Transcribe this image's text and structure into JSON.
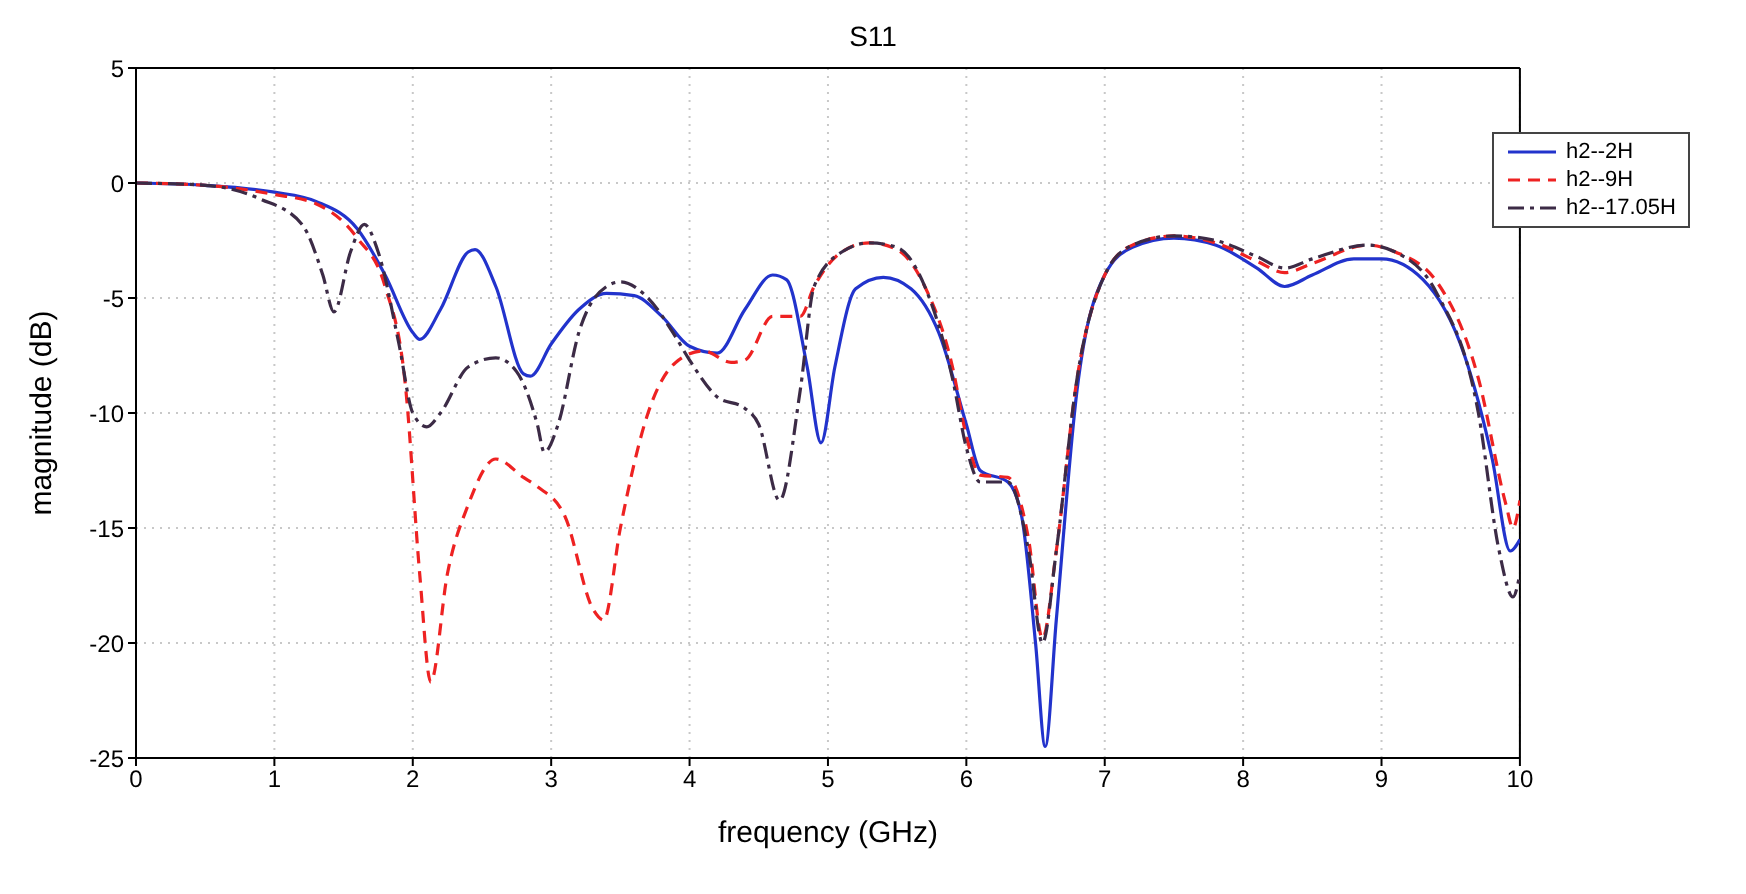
{
  "chart_data": {
    "type": "line",
    "title": "S11",
    "xlabel": "frequency (GHz)",
    "ylabel": "magnitude (dB)",
    "xlim": [
      0,
      10
    ],
    "xticks": [
      0,
      1,
      2,
      3,
      4,
      5,
      6,
      7,
      8,
      9,
      10
    ],
    "ylim": [
      -25,
      5
    ],
    "yticks": [
      -25,
      -20,
      -15,
      -10,
      -5,
      0,
      5
    ],
    "grid": true,
    "legend": "top right",
    "series": [
      {
        "name": "h2--2H",
        "color": "#2233cc",
        "line_style": "solid",
        "x": [
          0,
          0.5,
          1,
          1.3,
          1.6,
          1.8,
          2.0,
          2.05,
          2.2,
          2.4,
          2.45,
          2.6,
          2.8,
          2.85,
          3.0,
          3.2,
          3.4,
          3.6,
          3.8,
          4.0,
          4.2,
          4.4,
          4.6,
          4.7,
          4.85,
          4.95,
          5.05,
          5.2,
          5.4,
          5.6,
          5.8,
          6.0,
          6.1,
          6.3,
          6.4,
          6.5,
          6.57,
          6.65,
          6.8,
          7.0,
          7.2,
          7.5,
          7.8,
          8.1,
          8.3,
          8.5,
          8.8,
          9.0,
          9.3,
          9.6,
          9.8,
          9.93,
          10
        ],
        "values": [
          0,
          -0.1,
          -0.4,
          -0.8,
          -2,
          -4,
          -6.5,
          -6.8,
          -5.5,
          -3,
          -2.9,
          -4.5,
          -8.3,
          -8.4,
          -7,
          -5.5,
          -4.8,
          -4.9,
          -5.8,
          -7.1,
          -7.4,
          -5.5,
          -4,
          -4.2,
          -8,
          -11.3,
          -8,
          -4.6,
          -4.1,
          -4.6,
          -6.5,
          -10.5,
          -12.5,
          -13,
          -14.5,
          -20,
          -24.5,
          -19,
          -9,
          -4,
          -2.8,
          -2.4,
          -2.7,
          -3.7,
          -4.5,
          -4,
          -3.3,
          -3.3,
          -4.2,
          -7.5,
          -12,
          -16,
          -15.5
        ]
      },
      {
        "name": "h2--9H",
        "color": "#ee2222",
        "line_style": "dashed",
        "x": [
          0,
          0.5,
          1,
          1.3,
          1.6,
          1.8,
          1.95,
          2.05,
          2.13,
          2.25,
          2.4,
          2.6,
          2.8,
          2.9,
          3.1,
          3.3,
          3.38,
          3.5,
          3.7,
          3.9,
          4.1,
          4.3,
          4.4,
          4.6,
          4.8,
          4.9,
          5.1,
          5.3,
          5.5,
          5.7,
          5.9,
          6.0,
          6.1,
          6.3,
          6.45,
          6.55,
          6.65,
          6.8,
          7.0,
          7.2,
          7.5,
          7.8,
          8.1,
          8.3,
          8.5,
          8.9,
          9.1,
          9.4,
          9.7,
          9.9,
          9.95,
          10
        ],
        "values": [
          0,
          -0.1,
          -0.5,
          -0.9,
          -2.4,
          -4.5,
          -9,
          -17,
          -21.7,
          -17,
          -14,
          -12,
          -12.8,
          -13.2,
          -14.5,
          -18.5,
          -19,
          -15,
          -10,
          -7.8,
          -7.3,
          -7.8,
          -7.7,
          -5.8,
          -5.8,
          -4.5,
          -3,
          -2.6,
          -2.9,
          -4.5,
          -8,
          -11,
          -12.7,
          -12.8,
          -15.5,
          -19.8,
          -16,
          -8.5,
          -4,
          -2.7,
          -2.3,
          -2.6,
          -3.4,
          -3.9,
          -3.5,
          -2.7,
          -3,
          -4.3,
          -8.5,
          -14,
          -15,
          -13.8
        ]
      },
      {
        "name": "h2--17.05H",
        "color": "#3c2b46",
        "line_style": "dashdot",
        "x": [
          0,
          0.5,
          0.9,
          1.2,
          1.35,
          1.43,
          1.55,
          1.65,
          1.75,
          1.9,
          2.0,
          2.1,
          2.2,
          2.4,
          2.6,
          2.75,
          2.9,
          2.95,
          3.05,
          3.2,
          3.4,
          3.5,
          3.7,
          3.9,
          4.0,
          4.2,
          4.4,
          4.5,
          4.65,
          4.8,
          4.9,
          5.1,
          5.3,
          5.5,
          5.7,
          5.9,
          6.0,
          6.1,
          6.3,
          6.45,
          6.55,
          6.65,
          6.8,
          7.0,
          7.2,
          7.5,
          7.8,
          8.1,
          8.3,
          8.5,
          8.9,
          9.1,
          9.4,
          9.7,
          9.85,
          9.95,
          10
        ],
        "values": [
          0,
          -0.1,
          -0.7,
          -1.8,
          -4,
          -5.6,
          -3,
          -1.8,
          -3,
          -7,
          -10,
          -10.6,
          -10,
          -8,
          -7.6,
          -8.2,
          -10.5,
          -11.7,
          -10.5,
          -6.5,
          -4.5,
          -4.3,
          -5,
          -6.7,
          -7.7,
          -9.3,
          -9.8,
          -10.5,
          -13.8,
          -9,
          -4.5,
          -3,
          -2.6,
          -2.8,
          -4.5,
          -8.5,
          -11.5,
          -13,
          -13,
          -16,
          -20,
          -16,
          -8.5,
          -4,
          -2.7,
          -2.3,
          -2.5,
          -3.2,
          -3.7,
          -3.3,
          -2.7,
          -3,
          -4.8,
          -10,
          -16,
          -18,
          -17
        ]
      }
    ]
  }
}
